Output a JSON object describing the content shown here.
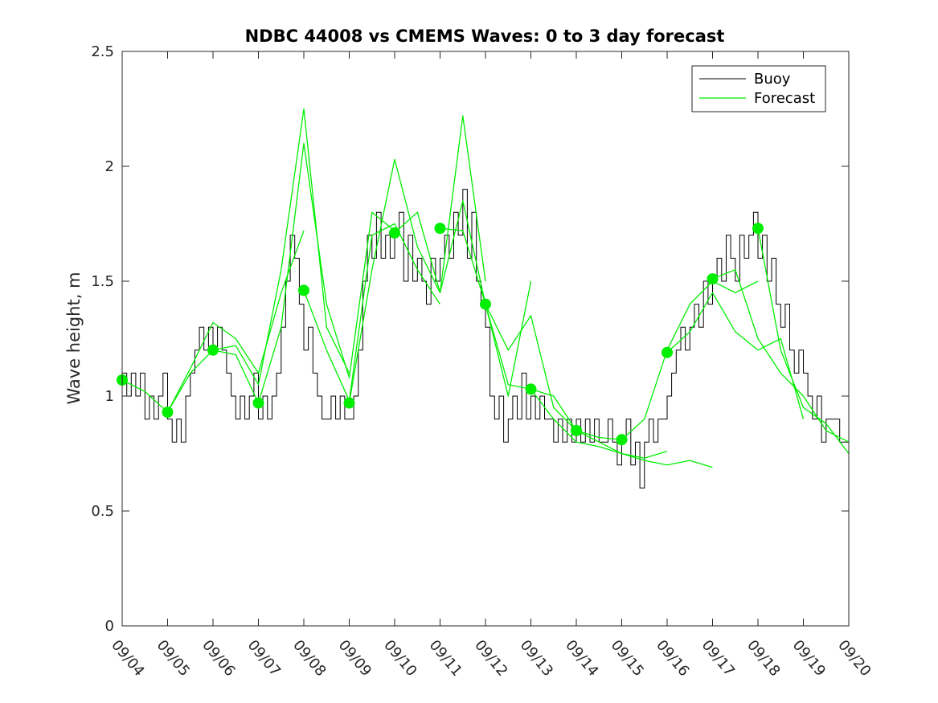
{
  "chart_data": {
    "type": "line",
    "title": "NDBC 44008 vs CMEMS Waves: 0 to 3 day forecast",
    "xlabel": "",
    "ylabel": "Wave height, m",
    "xlim": [
      0,
      16
    ],
    "ylim": [
      0,
      2.5
    ],
    "x_tick_labels": [
      "09/04",
      "09/05",
      "09/06",
      "09/07",
      "09/08",
      "09/09",
      "09/10",
      "09/11",
      "09/12",
      "09/13",
      "09/14",
      "09/15",
      "09/16",
      "09/17",
      "09/18",
      "09/19",
      "09/20"
    ],
    "y_ticks": [
      0,
      0.5,
      1,
      1.5,
      2,
      2.5
    ],
    "y_tick_labels": [
      "0",
      "0.5",
      "1",
      "1.5",
      "2",
      "2.5"
    ],
    "legend": {
      "position": "top-right",
      "entries": [
        "Buoy",
        "Forecast"
      ]
    },
    "colors": {
      "buoy": "#000000",
      "forecast": "#00ee00",
      "marker": "#00ee00",
      "axis": "#262626"
    },
    "buoy": {
      "name": "Buoy",
      "x": [
        0,
        0.1,
        0.2,
        0.3,
        0.4,
        0.5,
        0.6,
        0.7,
        0.8,
        0.9,
        1.0,
        1.1,
        1.2,
        1.3,
        1.4,
        1.5,
        1.6,
        1.7,
        1.8,
        1.9,
        2.0,
        2.1,
        2.2,
        2.3,
        2.4,
        2.5,
        2.6,
        2.7,
        2.8,
        2.9,
        3.0,
        3.1,
        3.2,
        3.3,
        3.4,
        3.5,
        3.6,
        3.7,
        3.8,
        3.9,
        4.0,
        4.1,
        4.2,
        4.3,
        4.4,
        4.5,
        4.6,
        4.7,
        4.8,
        4.9,
        5.0,
        5.1,
        5.2,
        5.3,
        5.4,
        5.5,
        5.6,
        5.7,
        5.8,
        5.9,
        6.0,
        6.1,
        6.2,
        6.3,
        6.4,
        6.5,
        6.6,
        6.7,
        6.8,
        6.9,
        7.0,
        7.1,
        7.2,
        7.3,
        7.4,
        7.5,
        7.6,
        7.7,
        7.8,
        7.9,
        8.0,
        8.1,
        8.2,
        8.3,
        8.4,
        8.5,
        8.6,
        8.7,
        8.8,
        8.9,
        9.0,
        9.1,
        9.2,
        9.3,
        9.4,
        9.5,
        9.6,
        9.7,
        9.8,
        9.9,
        10.0,
        10.1,
        10.2,
        10.3,
        10.4,
        10.5,
        10.6,
        10.7,
        10.8,
        10.9,
        11.0,
        11.1,
        11.2,
        11.3,
        11.4,
        11.5,
        11.6,
        11.7,
        11.8,
        11.9,
        12.0,
        12.1,
        12.2,
        12.3,
        12.4,
        12.5,
        12.6,
        12.7,
        12.8,
        12.9,
        13.0,
        13.1,
        13.2,
        13.3,
        13.4,
        13.5,
        13.6,
        13.7,
        13.8,
        13.9,
        14.0,
        14.1,
        14.2,
        14.3,
        14.4,
        14.5,
        14.6,
        14.7,
        14.8,
        14.9,
        15.0,
        15.1,
        15.2,
        15.3,
        15.4,
        15.5,
        15.6,
        15.7,
        15.8,
        15.9,
        16.0
      ],
      "values": [
        1.1,
        1.0,
        1.1,
        1.0,
        1.1,
        0.9,
        1.0,
        0.9,
        1.0,
        1.1,
        0.9,
        0.8,
        0.9,
        0.8,
        1.0,
        1.1,
        1.2,
        1.3,
        1.2,
        1.3,
        1.2,
        1.3,
        1.2,
        1.1,
        1.0,
        0.9,
        1.0,
        0.9,
        1.0,
        1.1,
        0.9,
        1.0,
        0.9,
        1.0,
        1.1,
        1.3,
        1.5,
        1.7,
        1.6,
        1.4,
        1.2,
        1.3,
        1.1,
        1.0,
        0.9,
        0.9,
        1.0,
        0.9,
        1.0,
        0.9,
        0.9,
        1.0,
        1.2,
        1.5,
        1.7,
        1.6,
        1.8,
        1.6,
        1.7,
        1.6,
        1.7,
        1.8,
        1.5,
        1.7,
        1.5,
        1.6,
        1.5,
        1.4,
        1.6,
        1.5,
        1.6,
        1.7,
        1.6,
        1.8,
        1.7,
        1.9,
        1.6,
        1.8,
        1.5,
        1.4,
        1.3,
        1.0,
        0.9,
        1.0,
        0.8,
        0.9,
        1.0,
        0.9,
        1.1,
        0.9,
        1.0,
        0.9,
        1.0,
        0.9,
        0.9,
        0.8,
        0.9,
        0.8,
        0.9,
        0.8,
        0.9,
        0.8,
        0.9,
        0.8,
        0.9,
        0.8,
        0.8,
        0.9,
        0.8,
        0.7,
        0.8,
        0.9,
        0.7,
        0.8,
        0.6,
        0.8,
        0.9,
        0.8,
        0.9,
        0.9,
        1.0,
        1.1,
        1.2,
        1.3,
        1.2,
        1.3,
        1.4,
        1.3,
        1.5,
        1.4,
        1.5,
        1.6,
        1.5,
        1.7,
        1.6,
        1.5,
        1.7,
        1.6,
        1.7,
        1.8,
        1.6,
        1.7,
        1.5,
        1.6,
        1.4,
        1.3,
        1.4,
        1.2,
        1.1,
        1.2,
        1.1,
        1.0,
        0.9,
        1.0,
        0.8,
        0.9,
        0.9,
        0.9,
        0.8,
        0.8,
        0.8
      ]
    },
    "forecast_series": [
      {
        "name": "Forecast",
        "x": [
          0,
          0.5,
          1,
          1.5,
          2,
          2.5,
          3
        ],
        "values": [
          1.07,
          1.02,
          0.93,
          1.1,
          1.2,
          1.18,
          0.97
        ]
      },
      {
        "name": "Forecast",
        "x": [
          1,
          1.5,
          2,
          2.5,
          3,
          3.5,
          4
        ],
        "values": [
          0.93,
          1.12,
          1.32,
          1.25,
          1.1,
          1.45,
          1.72
        ]
      },
      {
        "name": "Forecast",
        "x": [
          2,
          2.5,
          3,
          3.5,
          4,
          4.5,
          5
        ],
        "values": [
          1.2,
          1.22,
          1.05,
          1.55,
          2.25,
          1.3,
          1.1
        ]
      },
      {
        "name": "Forecast",
        "x": [
          3,
          3.5,
          4,
          4.5,
          5,
          5.5,
          6
        ],
        "values": [
          0.97,
          1.3,
          2.1,
          1.4,
          1.08,
          1.8,
          1.72
        ]
      },
      {
        "name": "Forecast",
        "x": [
          4,
          4.5,
          5,
          5.5,
          6,
          6.5,
          7
        ],
        "values": [
          1.46,
          1.2,
          0.98,
          1.7,
          1.75,
          1.55,
          1.4
        ]
      },
      {
        "name": "Forecast",
        "x": [
          5,
          5.5,
          6,
          6.5,
          7,
          7.5,
          8
        ],
        "values": [
          0.97,
          1.55,
          2.03,
          1.65,
          1.45,
          2.22,
          1.5
        ]
      },
      {
        "name": "Forecast",
        "x": [
          6,
          6.5,
          7,
          7.5,
          8,
          8.5,
          9
        ],
        "values": [
          1.71,
          1.8,
          1.45,
          1.85,
          1.4,
          1.0,
          1.5
        ]
      },
      {
        "name": "Forecast",
        "x": [
          7,
          7.5,
          8,
          8.5,
          9,
          9.5,
          10
        ],
        "values": [
          1.73,
          1.72,
          1.4,
          1.05,
          1.03,
          1.0,
          0.85
        ]
      },
      {
        "name": "Forecast",
        "x": [
          8,
          8.5,
          9,
          9.5,
          10,
          10.5,
          11
        ],
        "values": [
          1.4,
          1.2,
          1.35,
          0.95,
          0.85,
          0.82,
          0.81
        ]
      },
      {
        "name": "Forecast",
        "x": [
          9,
          9.5,
          10,
          10.5,
          11,
          11.5,
          12
        ],
        "values": [
          1.03,
          0.9,
          0.8,
          0.78,
          0.75,
          0.73,
          0.76
        ]
      },
      {
        "name": "Forecast",
        "x": [
          10,
          10.5,
          11,
          11.5,
          12,
          12.5,
          13
        ],
        "values": [
          0.85,
          0.8,
          0.75,
          0.72,
          0.7,
          0.72,
          0.69
        ]
      },
      {
        "name": "Forecast",
        "x": [
          11,
          11.5,
          12,
          12.5,
          13,
          13.5,
          14
        ],
        "values": [
          0.81,
          0.9,
          1.2,
          1.4,
          1.5,
          1.45,
          1.5
        ]
      },
      {
        "name": "Forecast",
        "x": [
          12,
          12.5,
          13,
          13.5,
          14,
          14.5,
          15
        ],
        "values": [
          1.19,
          1.28,
          1.45,
          1.28,
          1.2,
          1.25,
          0.9
        ]
      },
      {
        "name": "Forecast",
        "x": [
          13,
          13.5,
          14,
          14.5,
          15,
          15.5,
          16
        ],
        "values": [
          1.51,
          1.55,
          1.25,
          1.1,
          1.0,
          0.85,
          0.8
        ]
      },
      {
        "name": "Forecast",
        "x": [
          14,
          14.5,
          15,
          15.5,
          16
        ],
        "values": [
          1.73,
          1.2,
          0.95,
          0.88,
          0.75
        ]
      }
    ],
    "daily_markers": {
      "x": [
        0,
        1,
        2,
        3,
        4,
        5,
        6,
        7,
        8,
        9,
        10,
        11,
        12,
        13,
        14
      ],
      "values": [
        1.07,
        0.93,
        1.2,
        0.97,
        1.46,
        0.97,
        1.71,
        1.73,
        1.4,
        1.03,
        0.85,
        0.81,
        1.19,
        1.51,
        1.73
      ]
    }
  }
}
